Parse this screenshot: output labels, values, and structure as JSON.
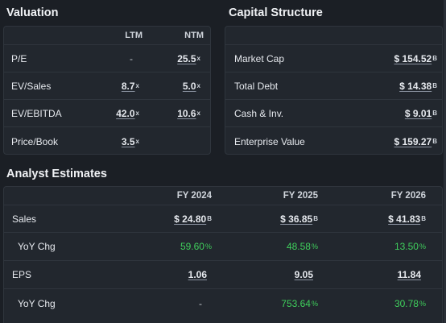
{
  "valuation": {
    "title": "Valuation",
    "col_ltm": "LTM",
    "col_ntm": "NTM",
    "rows": [
      {
        "label": "P/E",
        "ltm": "-",
        "ltm_unit": "",
        "ntm": "25.5",
        "ntm_unit": "x"
      },
      {
        "label": "EV/Sales",
        "ltm": "8.7",
        "ltm_unit": "x",
        "ntm": "5.0",
        "ntm_unit": "x"
      },
      {
        "label": "EV/EBITDA",
        "ltm": "42.0",
        "ltm_unit": "x",
        "ntm": "10.6",
        "ntm_unit": "x"
      },
      {
        "label": "Price/Book",
        "ltm": "3.5",
        "ltm_unit": "x",
        "ntm": "",
        "ntm_unit": ""
      }
    ]
  },
  "capital": {
    "title": "Capital Structure",
    "rows": [
      {
        "label": "Market Cap",
        "value": "$ 154.52",
        "unit": "B"
      },
      {
        "label": "Total Debt",
        "value": "$ 14.38",
        "unit": "B"
      },
      {
        "label": "Cash & Inv.",
        "value": "$ 9.01",
        "unit": "B"
      },
      {
        "label": "Enterprise Value",
        "value": "$ 159.27",
        "unit": "B"
      }
    ]
  },
  "estimates": {
    "title": "Analyst Estimates",
    "cols": [
      "FY 2024",
      "FY 2025",
      "FY 2026"
    ],
    "sales": {
      "label": "Sales",
      "values": [
        "$ 24.80",
        "$ 36.85",
        "$ 41.83"
      ],
      "unit": "B"
    },
    "sales_yoy": {
      "label": "YoY Chg",
      "values": [
        "59.60",
        "48.58",
        "13.50"
      ],
      "unit": "%"
    },
    "eps": {
      "label": "EPS",
      "values": [
        "1.06",
        "9.05",
        "11.84"
      ]
    },
    "eps_yoy": {
      "label": "YoY Chg",
      "values": [
        "-",
        "753.64",
        "30.78"
      ],
      "unit": "%"
    }
  },
  "colors": {
    "background": "#1b1f25",
    "panel": "#22272e",
    "positive": "#3fcf5c"
  }
}
